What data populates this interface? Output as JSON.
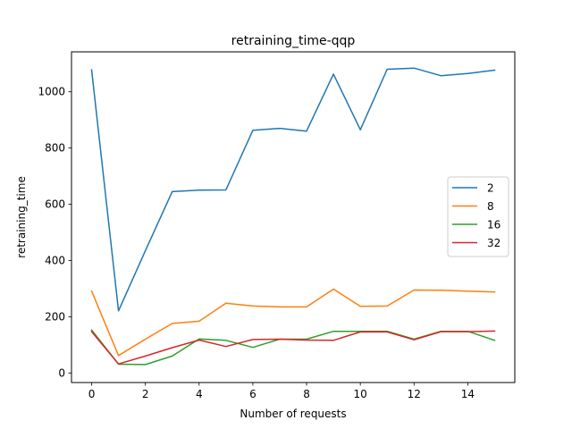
{
  "chart_data": {
    "type": "line",
    "title": "retraining_time-qqp",
    "xlabel": "Number of requests",
    "ylabel": "retraining_time",
    "xlim": [
      -0.75,
      15.75
    ],
    "ylim": [
      -34,
      1142
    ],
    "xticks": [
      0,
      2,
      4,
      6,
      8,
      10,
      12,
      14
    ],
    "yticks": [
      0,
      200,
      400,
      600,
      800,
      1000
    ],
    "grid": false,
    "legend_position": "center-right",
    "x": [
      0,
      1,
      2,
      3,
      4,
      5,
      6,
      7,
      8,
      9,
      10,
      11,
      12,
      13,
      14,
      15
    ],
    "series": [
      {
        "name": "2",
        "color": "#1f77b4",
        "values": [
          1078,
          221,
          435,
          645,
          650,
          651,
          863,
          870,
          860,
          1063,
          865,
          1080,
          1084,
          1057,
          1065,
          1077
        ]
      },
      {
        "name": "8",
        "color": "#ff7f0e",
        "values": [
          291,
          62,
          120,
          176,
          184,
          248,
          238,
          235,
          235,
          298,
          237,
          238,
          295,
          294,
          291,
          288
        ]
      },
      {
        "name": "16",
        "color": "#2ca02c",
        "values": [
          153,
          31,
          30,
          60,
          121,
          116,
          91,
          120,
          120,
          148,
          148,
          148,
          120,
          148,
          148,
          116
        ]
      },
      {
        "name": "32",
        "color": "#d62728",
        "values": [
          147,
          32,
          60,
          90,
          117,
          94,
          119,
          120,
          117,
          116,
          146,
          146,
          118,
          147,
          147,
          149
        ]
      }
    ]
  }
}
